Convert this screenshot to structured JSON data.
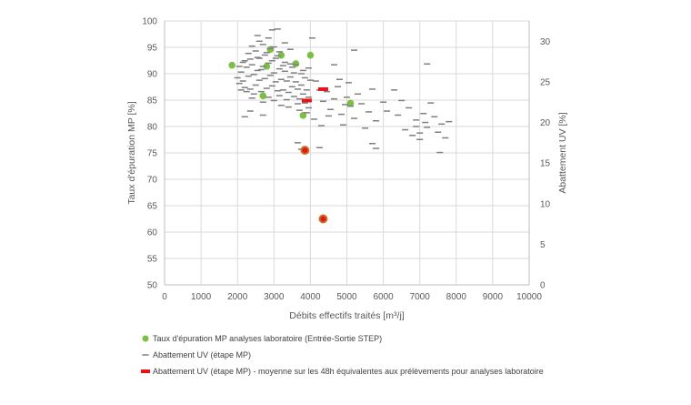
{
  "chart_data": {
    "type": "scatter",
    "xlabel": "Débits effectifs traités [m³/j]",
    "ylabel": "Taux d'épuration MP [%]",
    "y2label": "Abattement  UV [%]",
    "xlim": [
      0,
      10000
    ],
    "ylim": [
      50,
      100
    ],
    "y2lim": [
      0,
      32.5
    ],
    "xticks": [
      "0",
      "1000",
      "2000",
      "3000",
      "4000",
      "5000",
      "6000",
      "7000",
      "8000",
      "9000",
      "10000"
    ],
    "yticks": [
      "50",
      "55",
      "60",
      "65",
      "70",
      "75",
      "80",
      "85",
      "90",
      "95",
      "100"
    ],
    "y2ticks": [
      "0",
      "5",
      "10",
      "15",
      "20",
      "25",
      "30"
    ],
    "grid": true,
    "legend_position": "bottom",
    "colors": {
      "green": "#7cc043",
      "dash": "#7f7f7f",
      "red": "#e8121b",
      "ring": "#c3772b",
      "grid": "#d9d9d9",
      "axis": "#bfbfbf"
    },
    "series": [
      {
        "name": "Taux d'épuration MP analyses laboratoire (Entrée-Sortie STEP)",
        "axis": "left",
        "marker": "circle",
        "points": [
          [
            1850,
            91.6
          ],
          [
            2900,
            94.6
          ],
          [
            3200,
            93.5
          ],
          [
            4000,
            93.5
          ],
          [
            3600,
            91.9
          ],
          [
            2800,
            91.4
          ],
          [
            2700,
            85.8
          ],
          [
            3800,
            82.1
          ],
          [
            5100,
            84.4
          ]
        ]
      },
      {
        "name": "Abattement UV (étape MP)",
        "axis": "right",
        "marker": "dash",
        "points": [
          [
            2000,
            25.5
          ],
          [
            2050,
            24.8
          ],
          [
            2100,
            26.2
          ],
          [
            2150,
            25.1
          ],
          [
            2200,
            24.3
          ],
          [
            2250,
            26.8
          ],
          [
            2300,
            25.7
          ],
          [
            2350,
            24.1
          ],
          [
            2400,
            27.1
          ],
          [
            2450,
            25.9
          ],
          [
            2500,
            24.6
          ],
          [
            2550,
            26.4
          ],
          [
            2600,
            25.2
          ],
          [
            2650,
            23.8
          ],
          [
            2700,
            26.9
          ],
          [
            2750,
            25.4
          ],
          [
            2800,
            24.2
          ],
          [
            2850,
            27.3
          ],
          [
            2900,
            25.8
          ],
          [
            2950,
            24.5
          ],
          [
            3000,
            26.1
          ],
          [
            3050,
            25.0
          ],
          [
            3100,
            23.9
          ],
          [
            3150,
            26.6
          ],
          [
            3200,
            25.3
          ],
          [
            3250,
            24.0
          ],
          [
            3300,
            26.3
          ],
          [
            3350,
            25.1
          ],
          [
            3400,
            23.7
          ],
          [
            3450,
            25.6
          ],
          [
            3500,
            24.4
          ],
          [
            3550,
            23.2
          ],
          [
            3600,
            25.0
          ],
          [
            3650,
            24.1
          ],
          [
            3700,
            22.9
          ],
          [
            3750,
            24.6
          ],
          [
            3800,
            23.5
          ],
          [
            3850,
            22.4
          ],
          [
            3900,
            24.0
          ],
          [
            3950,
            23.1
          ],
          [
            2050,
            26.9
          ],
          [
            2150,
            27.4
          ],
          [
            2250,
            23.8
          ],
          [
            2350,
            27.8
          ],
          [
            2450,
            23.5
          ],
          [
            2550,
            28.0
          ],
          [
            2650,
            26.5
          ],
          [
            2750,
            28.3
          ],
          [
            2850,
            23.1
          ],
          [
            2950,
            27.6
          ],
          [
            3050,
            27.9
          ],
          [
            3150,
            23.3
          ],
          [
            3250,
            27.0
          ],
          [
            3350,
            22.8
          ],
          [
            3450,
            27.2
          ],
          [
            3550,
            26.1
          ],
          [
            3650,
            22.3
          ],
          [
            3750,
            26.0
          ],
          [
            3850,
            25.5
          ],
          [
            3950,
            21.8
          ],
          [
            2100,
            24.0
          ],
          [
            2200,
            27.6
          ],
          [
            2300,
            28.5
          ],
          [
            2400,
            23.0
          ],
          [
            2500,
            28.8
          ],
          [
            2600,
            27.9
          ],
          [
            2700,
            22.5
          ],
          [
            2800,
            28.6
          ],
          [
            2900,
            29.1
          ],
          [
            3000,
            22.7
          ],
          [
            3100,
            28.2
          ],
          [
            3200,
            22.1
          ],
          [
            3300,
            27.4
          ],
          [
            3400,
            21.9
          ],
          [
            3500,
            26.8
          ],
          [
            3600,
            27.1
          ],
          [
            3700,
            21.5
          ],
          [
            3800,
            26.4
          ],
          [
            3900,
            21.2
          ],
          [
            4000,
            25.2
          ],
          [
            2700,
            29.6
          ],
          [
            2600,
            30.0
          ],
          [
            2850,
            30.4
          ],
          [
            3000,
            29.3
          ],
          [
            3300,
            29.8
          ],
          [
            3450,
            29.0
          ],
          [
            2950,
            31.4
          ],
          [
            3150,
            28.7
          ],
          [
            2400,
            29.4
          ],
          [
            2550,
            30.7
          ],
          [
            4050,
            30.4
          ],
          [
            3100,
            31.5
          ],
          [
            3950,
            26.7
          ],
          [
            4150,
            25.1
          ],
          [
            4250,
            24.0
          ],
          [
            4350,
            22.6
          ],
          [
            4450,
            23.8
          ],
          [
            4550,
            21.6
          ],
          [
            4650,
            22.9
          ],
          [
            4750,
            24.4
          ],
          [
            4850,
            21.0
          ],
          [
            4950,
            22.2
          ],
          [
            4100,
            20.4
          ],
          [
            4300,
            19.6
          ],
          [
            4500,
            20.8
          ],
          [
            4800,
            25.3
          ],
          [
            4900,
            19.7
          ],
          [
            5000,
            23.1
          ],
          [
            5100,
            22.0
          ],
          [
            5200,
            20.5
          ],
          [
            5300,
            23.5
          ],
          [
            5400,
            22.3
          ],
          [
            5500,
            19.3
          ],
          [
            5600,
            21.3
          ],
          [
            5700,
            24.1
          ],
          [
            5800,
            20.2
          ],
          [
            6000,
            22.5
          ],
          [
            6100,
            21.4
          ],
          [
            6300,
            24.0
          ],
          [
            6400,
            20.9
          ],
          [
            6500,
            22.7
          ],
          [
            6600,
            19.1
          ],
          [
            6700,
            21.8
          ],
          [
            6800,
            18.4
          ],
          [
            6900,
            20.3
          ],
          [
            7000,
            17.9
          ],
          [
            7100,
            21.1
          ],
          [
            7200,
            19.4
          ],
          [
            7300,
            22.4
          ],
          [
            7400,
            20.7
          ],
          [
            7500,
            18.8
          ],
          [
            7600,
            19.8
          ],
          [
            7700,
            18.1
          ],
          [
            7800,
            20.1
          ],
          [
            7000,
            18.7
          ],
          [
            7150,
            20.0
          ],
          [
            5200,
            28.9
          ],
          [
            4650,
            27.1
          ],
          [
            7200,
            27.2
          ],
          [
            5700,
            17.4
          ],
          [
            3650,
            17.5
          ],
          [
            3750,
            16.7
          ],
          [
            4250,
            16.9
          ],
          [
            5800,
            16.8
          ],
          [
            7550,
            16.3
          ],
          [
            6900,
            19.5
          ],
          [
            2200,
            20.7
          ],
          [
            2350,
            21.4
          ],
          [
            2700,
            20.9
          ],
          [
            5050,
            24.9
          ]
        ]
      },
      {
        "name": "Abattement UV (étape MP) - moyenne sur les 48h équivalentes aux prélèvements pour analyses laboratoire",
        "axis": "right",
        "marker": "bar",
        "points": [
          [
            3900,
            22.7
          ],
          [
            4350,
            24.1
          ]
        ]
      },
      {
        "name": "",
        "axis": "left",
        "marker": "ringed-circle",
        "points": [
          [
            3850,
            75.5
          ],
          [
            4350,
            62.5
          ]
        ]
      }
    ]
  }
}
